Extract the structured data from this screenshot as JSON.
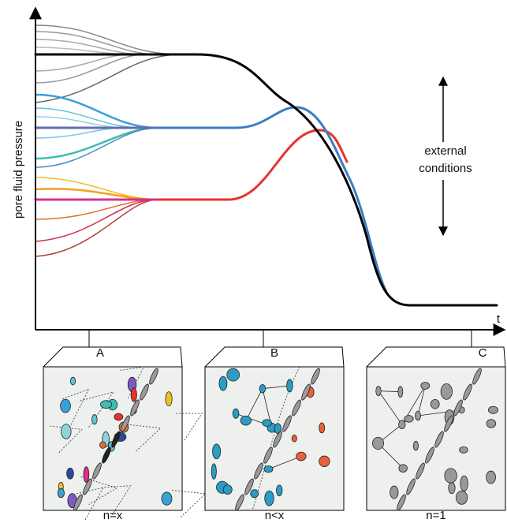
{
  "axis": {
    "y_label": "pore fluid pressure",
    "x_label": "t"
  },
  "annotation": [
    "external",
    "conditions"
  ],
  "panels": [
    {
      "label": "A",
      "caption": "n=x"
    },
    {
      "label": "B",
      "caption": "n<x"
    },
    {
      "label": "C",
      "caption": "n=1"
    }
  ]
}
